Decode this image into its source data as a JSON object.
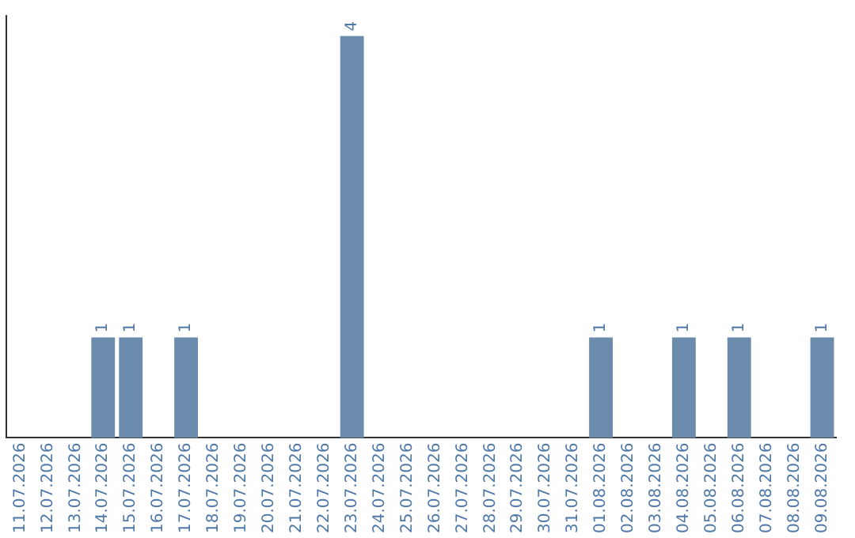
{
  "chart_data": {
    "type": "bar",
    "categories": [
      "11.07.2026",
      "12.07.2026",
      "13.07.2026",
      "14.07.2026",
      "15.07.2026",
      "16.07.2026",
      "17.07.2026",
      "18.07.2026",
      "19.07.2026",
      "20.07.2026",
      "21.07.2026",
      "22.07.2026",
      "23.07.2026",
      "24.07.2026",
      "25.07.2026",
      "26.07.2026",
      "27.07.2026",
      "28.07.2026",
      "29.07.2026",
      "30.07.2026",
      "31.07.2026",
      "01.08.2026",
      "02.08.2026",
      "03.08.2026",
      "04.08.2026",
      "05.08.2026",
      "06.08.2026",
      "07.08.2026",
      "08.08.2026",
      "09.08.2026"
    ],
    "values": [
      0,
      0,
      0,
      1,
      1,
      0,
      1,
      0,
      0,
      0,
      0,
      0,
      4,
      0,
      0,
      0,
      0,
      0,
      0,
      0,
      0,
      1,
      0,
      0,
      1,
      0,
      1,
      0,
      0,
      1
    ],
    "value_labels": [
      null,
      null,
      null,
      "1",
      "1",
      null,
      "1",
      null,
      null,
      null,
      null,
      null,
      "4",
      null,
      null,
      null,
      null,
      null,
      null,
      null,
      null,
      "1",
      null,
      null,
      "1",
      null,
      "1",
      null,
      null,
      "1"
    ],
    "color": "#6b8cad",
    "ylim": [
      0,
      4.2
    ],
    "tick_labels": "x",
    "grid": false,
    "legend": false
  }
}
